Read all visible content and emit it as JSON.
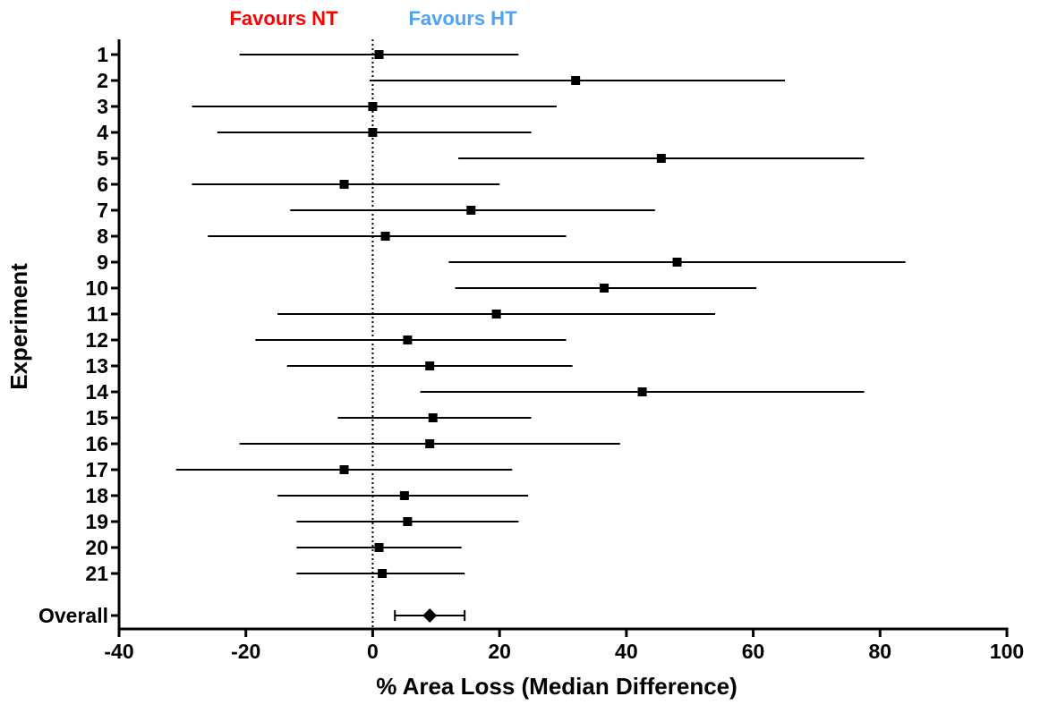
{
  "chart_data": {
    "type": "forest",
    "title": "",
    "xlabel": "% Area Loss (Median  Difference)",
    "ylabel": "Experiment",
    "xlim": [
      -40,
      100
    ],
    "xticks": [
      "-40",
      "-20",
      "0",
      "20",
      "40",
      "60",
      "80",
      "100"
    ],
    "reference_line_x": 0,
    "favour_labels": [
      {
        "text": "Favours  NT",
        "color": "#ff0000"
      },
      {
        "text": "Favours  HT",
        "color": "#4fa3f7"
      }
    ],
    "experiments": [
      {
        "label": "1",
        "estimate": 1,
        "lower": -21,
        "upper": 23
      },
      {
        "label": "2",
        "estimate": 32,
        "lower": -0.5,
        "upper": 65
      },
      {
        "label": "3",
        "estimate": 0,
        "lower": -28.5,
        "upper": 29
      },
      {
        "label": "4",
        "estimate": 0,
        "lower": -24.5,
        "upper": 25
      },
      {
        "label": "5",
        "estimate": 45.5,
        "lower": 13.5,
        "upper": 77.5
      },
      {
        "label": "6",
        "estimate": -4.5,
        "lower": -28.5,
        "upper": 20
      },
      {
        "label": "7",
        "estimate": 15.5,
        "lower": -13,
        "upper": 44.5
      },
      {
        "label": "8",
        "estimate": 2,
        "lower": -26,
        "upper": 30.5
      },
      {
        "label": "9",
        "estimate": 48,
        "lower": 12,
        "upper": 84
      },
      {
        "label": "10",
        "estimate": 36.5,
        "lower": 13,
        "upper": 60.5
      },
      {
        "label": "11",
        "estimate": 19.5,
        "lower": -15,
        "upper": 54
      },
      {
        "label": "12",
        "estimate": 5.5,
        "lower": -18.5,
        "upper": 30.5
      },
      {
        "label": "13",
        "estimate": 9,
        "lower": -13.5,
        "upper": 31.5
      },
      {
        "label": "14",
        "estimate": 42.5,
        "lower": 7.5,
        "upper": 77.5
      },
      {
        "label": "15",
        "estimate": 9.5,
        "lower": -5.5,
        "upper": 25
      },
      {
        "label": "16",
        "estimate": 9,
        "lower": -21,
        "upper": 39
      },
      {
        "label": "17",
        "estimate": -4.5,
        "lower": -31,
        "upper": 22
      },
      {
        "label": "18",
        "estimate": 5,
        "lower": -15,
        "upper": 24.5
      },
      {
        "label": "19",
        "estimate": 5.5,
        "lower": -12,
        "upper": 23
      },
      {
        "label": "20",
        "estimate": 1,
        "lower": -12,
        "upper": 14
      },
      {
        "label": "21",
        "estimate": 1.5,
        "lower": -12,
        "upper": 14.5
      }
    ],
    "overall": {
      "label": "Overall",
      "estimate": 9,
      "lower": 3.5,
      "upper": 14.5
    }
  }
}
